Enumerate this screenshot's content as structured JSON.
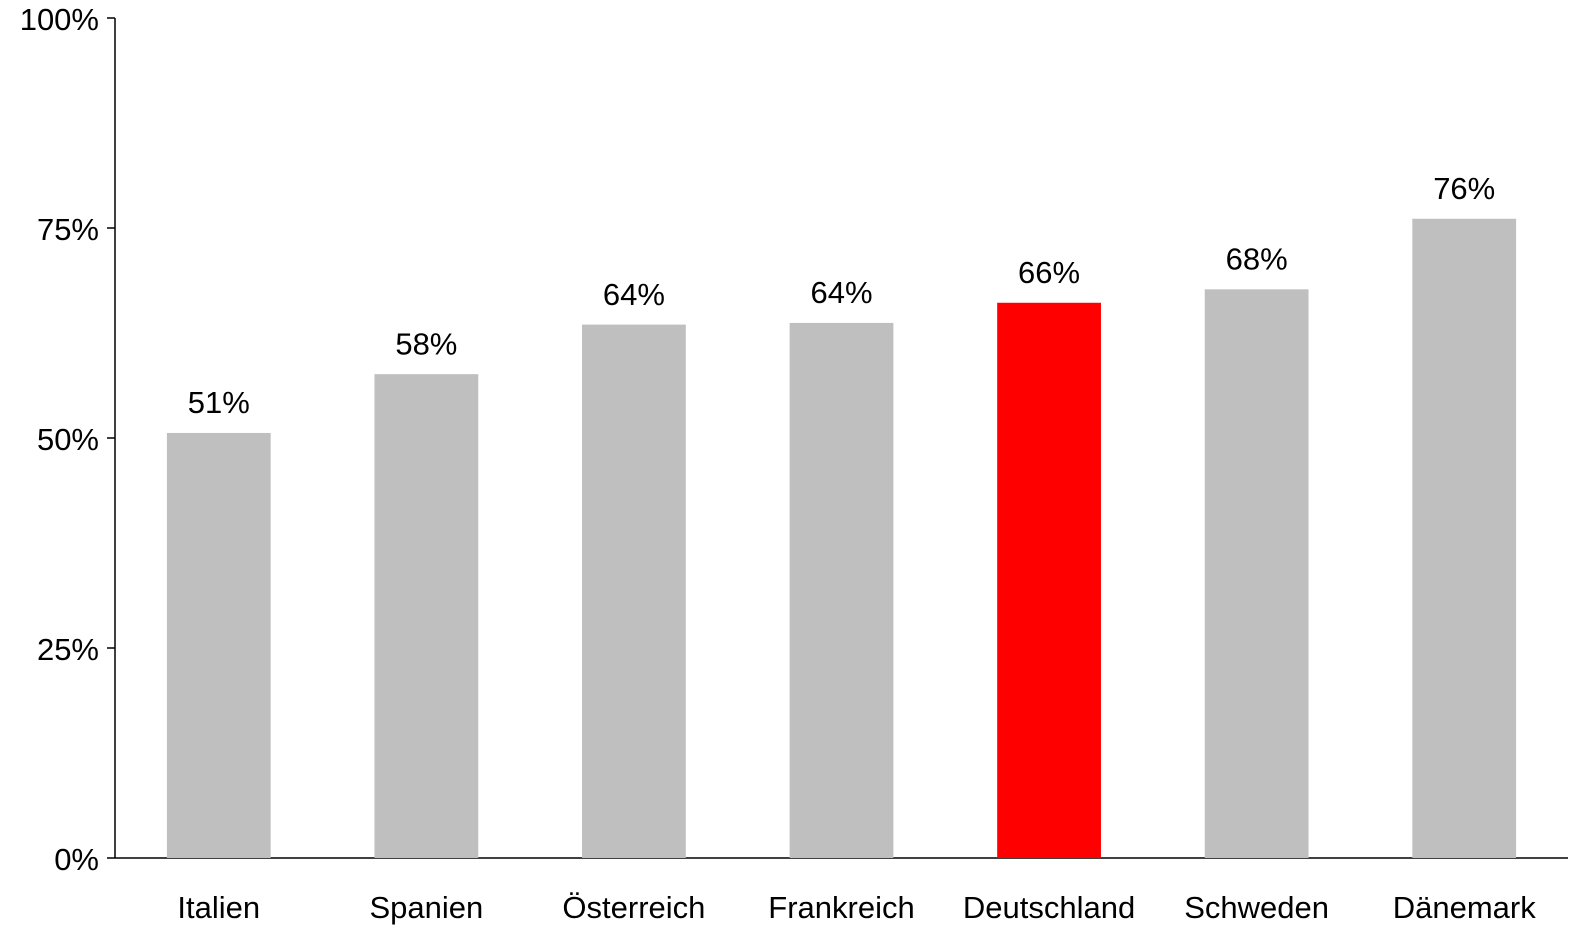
{
  "chart_data": {
    "type": "bar",
    "categories": [
      "Italien",
      "Spanien",
      "Österreich",
      "Frankreich",
      "Deutschland",
      "Schweden",
      "Dänemark"
    ],
    "values": [
      50.6,
      57.6,
      63.5,
      63.7,
      66.1,
      67.7,
      76.1
    ],
    "value_labels": [
      "51%",
      "58%",
      "64%",
      "64%",
      "66%",
      "68%",
      "76%"
    ],
    "colors": [
      "#bfbfbf",
      "#bfbfbf",
      "#bfbfbf",
      "#bfbfbf",
      "#ff0000",
      "#bfbfbf",
      "#bfbfbf"
    ],
    "ylim": [
      0,
      100
    ],
    "yticks": [
      {
        "value": 0,
        "label": "0%"
      },
      {
        "value": 25,
        "label": "25%"
      },
      {
        "value": 50,
        "label": "50%"
      },
      {
        "value": 75,
        "label": "75%"
      },
      {
        "value": 100,
        "label": "100%"
      }
    ],
    "grid": false
  }
}
